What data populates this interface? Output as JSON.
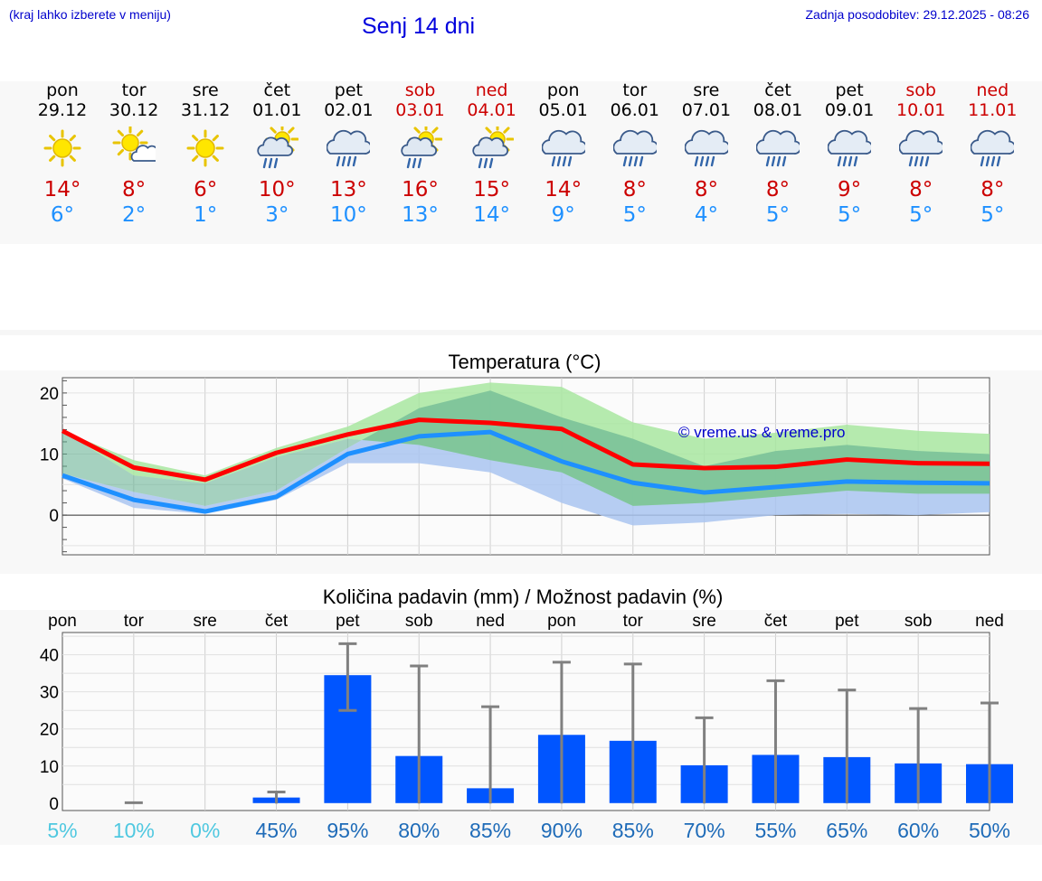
{
  "header": {
    "hint": "(kraj lahko izberete v meniju)",
    "title": "Senj 14 dni",
    "updated": "Zadnja posodobitev: 29.12.2025 - 08:26"
  },
  "days": [
    {
      "name": "pon",
      "date": "29.12",
      "weekend": false,
      "icon": "sun-icon",
      "max": "14°",
      "min": "6°"
    },
    {
      "name": "tor",
      "date": "30.12",
      "weekend": false,
      "icon": "sun-cloud-icon",
      "max": "8°",
      "min": "2°"
    },
    {
      "name": "sre",
      "date": "31.12",
      "weekend": false,
      "icon": "sun-icon",
      "max": "6°",
      "min": "1°"
    },
    {
      "name": "čet",
      "date": "01.01",
      "weekend": false,
      "icon": "sun-rain-icon",
      "max": "10°",
      "min": "3°"
    },
    {
      "name": "pet",
      "date": "02.01",
      "weekend": false,
      "icon": "rain-cloud-icon",
      "max": "13°",
      "min": "10°"
    },
    {
      "name": "sob",
      "date": "03.01",
      "weekend": true,
      "icon": "sun-rain-icon",
      "max": "16°",
      "min": "13°"
    },
    {
      "name": "ned",
      "date": "04.01",
      "weekend": true,
      "icon": "sun-rain-icon",
      "max": "15°",
      "min": "14°"
    },
    {
      "name": "pon",
      "date": "05.01",
      "weekend": false,
      "icon": "rain-cloud-icon",
      "max": "14°",
      "min": "9°"
    },
    {
      "name": "tor",
      "date": "06.01",
      "weekend": false,
      "icon": "rain-cloud-icon",
      "max": "8°",
      "min": "5°"
    },
    {
      "name": "sre",
      "date": "07.01",
      "weekend": false,
      "icon": "rain-cloud-icon",
      "max": "8°",
      "min": "4°"
    },
    {
      "name": "čet",
      "date": "08.01",
      "weekend": false,
      "icon": "rain-cloud-icon",
      "max": "8°",
      "min": "5°"
    },
    {
      "name": "pet",
      "date": "09.01",
      "weekend": false,
      "icon": "rain-cloud-icon",
      "max": "9°",
      "min": "5°"
    },
    {
      "name": "sob",
      "date": "10.01",
      "weekend": true,
      "icon": "rain-cloud-icon",
      "max": "8°",
      "min": "5°"
    },
    {
      "name": "ned",
      "date": "11.01",
      "weekend": true,
      "icon": "rain-cloud-icon",
      "max": "8°",
      "min": "5°"
    }
  ],
  "colors": {
    "max": "#ff0000",
    "min": "#1e90ff",
    "max_band": "#a8e6a0",
    "min_band": "#a9c4f0",
    "bar": "#0055ff",
    "err": "#808080"
  },
  "chart_data": [
    {
      "type": "line",
      "title": "Temperatura (°C)",
      "watermark": "© vreme.us & vreme.pro",
      "ylim": [
        -6.5,
        22.5
      ],
      "yticks": [
        0,
        10,
        20
      ],
      "x": [
        0,
        1,
        2,
        3,
        4,
        5,
        6,
        7,
        8,
        9,
        10,
        11,
        12,
        13
      ],
      "series": [
        {
          "name": "max",
          "values": [
            13.8,
            7.8,
            5.8,
            10.2,
            13.2,
            15.6,
            15.1,
            14.1,
            8.3,
            7.7,
            7.9,
            9.1,
            8.5,
            8.4
          ]
        },
        {
          "name": "min",
          "values": [
            6.5,
            2.5,
            0.6,
            3.0,
            10.0,
            12.9,
            13.6,
            8.8,
            5.3,
            3.7,
            4.6,
            5.5,
            5.3,
            5.2
          ]
        },
        {
          "name": "max_upper",
          "values": [
            13.8,
            9.0,
            6.5,
            11.0,
            14.5,
            20.0,
            21.7,
            21.0,
            15.2,
            12.5,
            13.5,
            14.8,
            13.8,
            13.3
          ]
        },
        {
          "name": "max_lower",
          "values": [
            13.8,
            6.5,
            5.2,
            9.5,
            12.5,
            11.5,
            9.0,
            7.0,
            1.5,
            2.0,
            3.0,
            4.0,
            3.5,
            3.5
          ]
        },
        {
          "name": "min_upper",
          "values": [
            6.8,
            3.8,
            1.5,
            4.0,
            11.0,
            17.5,
            20.4,
            16.0,
            12.5,
            8.0,
            10.5,
            11.5,
            10.5,
            10.0
          ]
        },
        {
          "name": "min_lower",
          "values": [
            6.0,
            1.2,
            0.2,
            2.5,
            8.5,
            8.5,
            7.0,
            2.0,
            -1.7,
            -1.2,
            0.0,
            0.2,
            0.0,
            0.5
          ]
        }
      ]
    },
    {
      "type": "bar",
      "title": "Količina padavin (mm) / Možnost padavin (%)",
      "ylim": [
        -2,
        46
      ],
      "yticks": [
        0,
        10,
        20,
        30,
        40
      ],
      "categories": [
        "pon",
        "tor",
        "sre",
        "čet",
        "pet",
        "sob",
        "ned",
        "pon",
        "tor",
        "sre",
        "čet",
        "pet",
        "sob",
        "ned"
      ],
      "values": [
        0,
        0,
        0,
        1.5,
        34.5,
        12.7,
        4.0,
        18.4,
        16.8,
        10.2,
        13.0,
        12.4,
        10.7,
        10.5
      ],
      "err_low": [
        0,
        0,
        0,
        0,
        25,
        0,
        0,
        0,
        0,
        0,
        0,
        0,
        0,
        0
      ],
      "err_high": [
        0,
        0.1,
        0,
        3,
        43,
        37,
        26,
        38,
        37.5,
        23,
        33,
        30.5,
        25.5,
        27
      ],
      "probability": [
        "5%",
        "10%",
        "0%",
        "45%",
        "95%",
        "80%",
        "85%",
        "90%",
        "85%",
        "70%",
        "55%",
        "65%",
        "60%",
        "50%"
      ],
      "probability_values": [
        5,
        10,
        0,
        45,
        95,
        80,
        85,
        90,
        85,
        70,
        55,
        65,
        60,
        50
      ]
    }
  ]
}
